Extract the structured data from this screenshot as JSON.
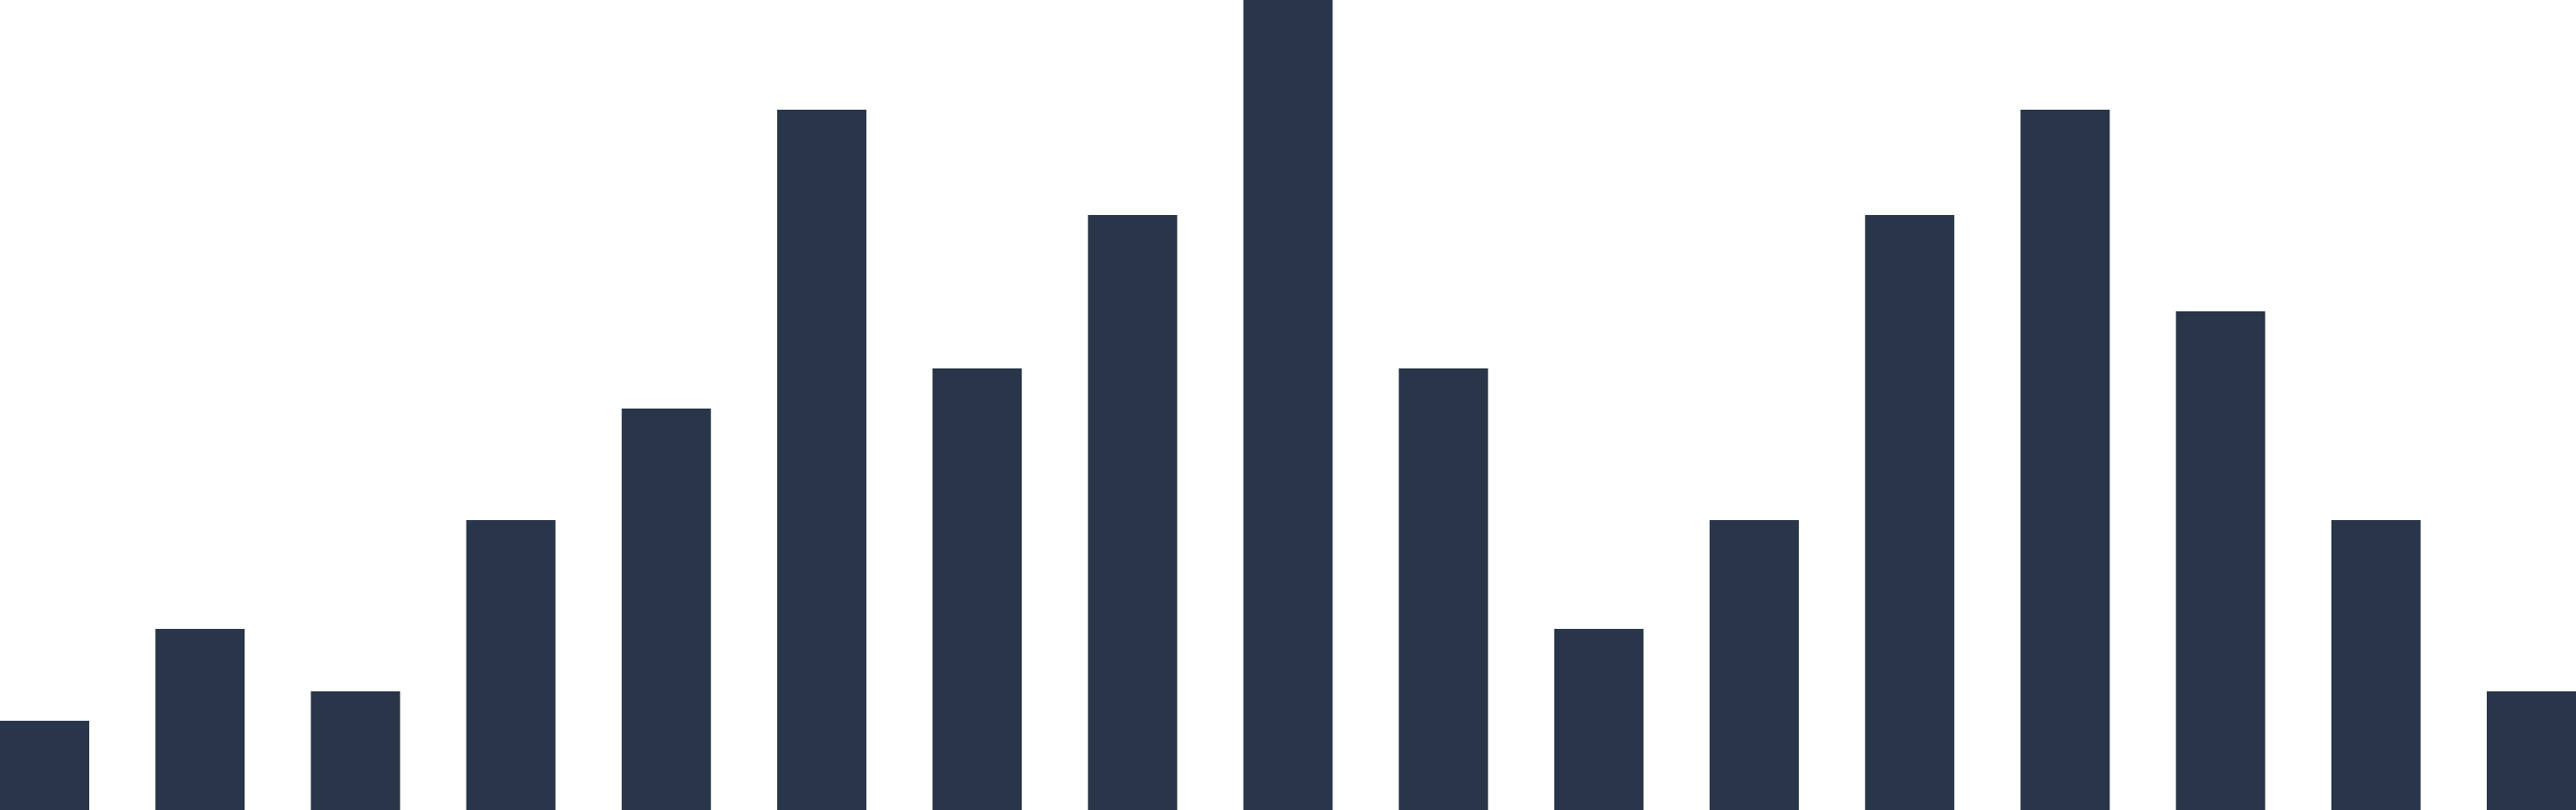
{
  "chart_data": {
    "type": "bar",
    "title": "",
    "xlabel": "",
    "ylabel": "",
    "ylim": [
      0,
      908
    ],
    "grid": false,
    "legend": "none",
    "bar_color": "#293548",
    "values": [
      100,
      203,
      133,
      325,
      450,
      785,
      495,
      667,
      908,
      495,
      203,
      325,
      667,
      785,
      559,
      325,
      133
    ]
  }
}
